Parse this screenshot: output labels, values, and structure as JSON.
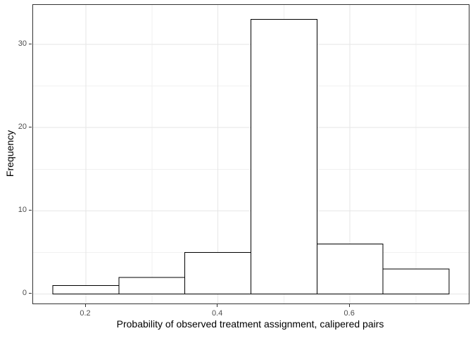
{
  "chart_data": {
    "type": "bar",
    "subtype": "histogram",
    "title": "",
    "xlabel": "Probability of observed treatment assignment, calipered pairs",
    "ylabel": "Frequency",
    "bin_edges": [
      0.15,
      0.25,
      0.35,
      0.45,
      0.55,
      0.65,
      0.75
    ],
    "values": [
      1,
      2,
      5,
      33,
      6,
      3
    ],
    "x_ticks": [
      0.2,
      0.4,
      0.6
    ],
    "x_tick_labels": [
      "0.2",
      "0.4",
      "0.6"
    ],
    "x_minor_gridlines": [
      0.3,
      0.5,
      0.7
    ],
    "y_ticks": [
      0,
      10,
      20,
      30
    ],
    "y_tick_labels": [
      "0",
      "10",
      "20",
      "30"
    ],
    "y_minor_gridlines": [
      5,
      15,
      25
    ],
    "xlim": [
      0.12,
      0.78
    ],
    "ylim": [
      -1.15,
      34.75
    ],
    "grid": true,
    "legend": false,
    "colors": {
      "background": "#ffffff",
      "panel_background": "#ffffff",
      "panel_border": "#333333",
      "grid_major": "#e6e6e6",
      "grid_minor": "#f0f0f0",
      "bar_fill": "#ffffff",
      "bar_stroke": "#000000",
      "tick_mark": "#333333",
      "tick_label": "#4d4d4d",
      "axis_title": "#000000"
    }
  }
}
